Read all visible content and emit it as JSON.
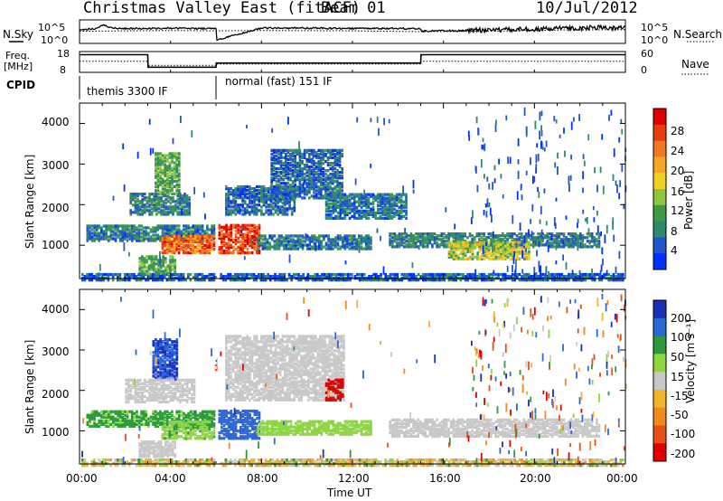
{
  "header": {
    "station": "Christmas Valley East (fitACF)",
    "beam": "Beam 01",
    "date": "10/Jul/2012"
  },
  "summary": {
    "nsky_label": "N.Sky",
    "nsearch_label": "N.Search",
    "noise_ticks": [
      "10^5",
      "10^0"
    ],
    "freq_label": "Freq.",
    "freq_unit": "[MHz]",
    "freq_ticks": [
      "18",
      "8"
    ],
    "nave_label": "Nave",
    "nave_ticks": [
      "60",
      "0"
    ],
    "cpid_label": "CPID",
    "modes": [
      {
        "start_hour": 0,
        "end_hour": 6,
        "label": "themis 3300 IF"
      },
      {
        "start_hour": 6,
        "end_hour": 24,
        "label": "normal (fast) 151 IF"
      }
    ]
  },
  "axes": {
    "x_ticks": [
      "00:00",
      "04:00",
      "08:00",
      "12:00",
      "16:00",
      "20:00",
      "00:00"
    ],
    "x_label": "Time UT",
    "y_label": "Slant Range [km]",
    "y_ticks": [
      "4000",
      "3000",
      "2000",
      "1000"
    ]
  },
  "colors": {
    "power": [
      "#0030ff",
      "#2255cc",
      "#2d8a6a",
      "#3f9a46",
      "#8cc63f",
      "#f0d020",
      "#f5a623",
      "#f07820",
      "#e83c10",
      "#e00000"
    ],
    "velocity": [
      "#1a2fb8",
      "#2c67d8",
      "#2d9a3a",
      "#8dd640",
      "#c8c8c8",
      "#f3b32a",
      "#f08a1c",
      "#e8501a",
      "#e00000"
    ]
  },
  "chart_data": [
    {
      "type": "line",
      "title": "",
      "x_unit": "hours UT",
      "xlim": [
        0,
        24
      ],
      "series": [
        {
          "name": "N.Sky",
          "x": [
            0,
            0.7,
            1,
            1.5,
            2,
            3,
            4,
            5,
            6,
            6.01,
            8,
            10,
            12,
            14,
            15,
            15.01,
            17,
            19,
            21,
            23,
            24
          ],
          "y_log10": [
            3.0,
            3.2,
            4.2,
            3.4,
            3.3,
            3.3,
            3.4,
            3.3,
            3.3,
            0.4,
            3.4,
            3.4,
            3.3,
            3.3,
            3.3,
            2.6,
            2.8,
            3.0,
            3.3,
            3.5,
            3.4
          ]
        },
        {
          "name": "N.Search",
          "x": [
            0,
            2,
            4,
            6,
            8,
            12,
            15,
            18,
            21,
            24
          ],
          "y_log10": [
            2.6,
            2.7,
            2.8,
            2.7,
            2.8,
            2.7,
            2.5,
            2.6,
            2.9,
            3.0
          ]
        }
      ],
      "ylim_log10": [
        0,
        5
      ]
    },
    {
      "type": "line",
      "title": "",
      "x_unit": "hours UT",
      "xlim": [
        0,
        24
      ],
      "series": [
        {
          "name": "Freq.",
          "x": [
            0,
            3,
            3.01,
            6,
            6.01,
            15,
            15.01,
            24
          ],
          "y": [
            16.5,
            16.5,
            10.5,
            10.5,
            12.5,
            12.5,
            16.5,
            16.5
          ]
        },
        {
          "name": "Nave",
          "x": [
            0,
            3,
            3.01,
            6,
            6.01,
            15,
            15.01,
            24
          ],
          "y_nave": [
            32,
            32,
            20,
            20,
            24,
            24,
            32,
            32
          ]
        }
      ],
      "ylim": [
        8,
        18
      ],
      "ylim_nave": [
        0,
        60
      ]
    },
    {
      "type": "heatmap",
      "title": "",
      "x_unit": "hours UT",
      "y_unit": "km",
      "colorbar_label": "Power [dB]",
      "colorbar_ticks": [
        "28",
        "24",
        "20",
        "16",
        "12",
        "8",
        "4"
      ],
      "clim": [
        0,
        30
      ],
      "xlim": [
        0,
        24
      ],
      "ylim": [
        180,
        4500
      ],
      "ground_scatter_band": {
        "range_km": [
          180,
          330
        ],
        "value": 6
      },
      "patches": [
        {
          "x": [
            0.3,
            6.0
          ],
          "y": [
            1150,
            1550
          ],
          "value": 8
        },
        {
          "x": [
            3.6,
            6.0
          ],
          "y": [
            850,
            1300
          ],
          "value": 24
        },
        {
          "x": [
            6.1,
            7.9
          ],
          "y": [
            850,
            1550
          ],
          "value": 26
        },
        {
          "x": [
            2.2,
            4.8
          ],
          "y": [
            1800,
            2300
          ],
          "value": 9
        },
        {
          "x": [
            3.3,
            4.4
          ],
          "y": [
            2300,
            3300
          ],
          "value": 12
        },
        {
          "x": [
            6.4,
            9.4
          ],
          "y": [
            1800,
            2500
          ],
          "value": 7
        },
        {
          "x": [
            8.4,
            11.6
          ],
          "y": [
            2200,
            3400
          ],
          "value": 7
        },
        {
          "x": [
            7.8,
            12.8
          ],
          "y": [
            950,
            1300
          ],
          "value": 8
        },
        {
          "x": [
            10.8,
            14.4
          ],
          "y": [
            1700,
            2300
          ],
          "value": 8
        },
        {
          "x": [
            13.6,
            22.8
          ],
          "y": [
            1000,
            1350
          ],
          "value": 9
        },
        {
          "x": [
            16.2,
            19.8
          ],
          "y": [
            700,
            1150
          ],
          "value": 16
        },
        {
          "x": [
            2.6,
            4.2
          ],
          "y": [
            350,
            800
          ],
          "value": 12
        }
      ]
    },
    {
      "type": "heatmap",
      "title": "",
      "x_unit": "hours UT",
      "y_unit": "km",
      "colorbar_label": "Velocity [m s⁻¹]",
      "colorbar_ticks": [
        "200",
        "100",
        "50",
        "15",
        "-15",
        "-50",
        "-100",
        "-200"
      ],
      "clim": [
        -250,
        250
      ],
      "xlim": [
        0,
        24
      ],
      "ylim": [
        180,
        4500
      ],
      "ground_scatter_band": {
        "range_km": [
          180,
          330
        ],
        "value": -30
      },
      "patches": [
        {
          "x": [
            0.3,
            6.0
          ],
          "y": [
            1150,
            1550
          ],
          "value": 60
        },
        {
          "x": [
            3.6,
            6.0
          ],
          "y": [
            850,
            1300
          ],
          "value": 40
        },
        {
          "x": [
            6.1,
            7.9
          ],
          "y": [
            850,
            1550
          ],
          "value": 180
        },
        {
          "x": [
            3.2,
            4.3
          ],
          "y": [
            2300,
            3300
          ],
          "value": 200
        },
        {
          "x": [
            2.0,
            5.0
          ],
          "y": [
            1750,
            2300
          ],
          "value": 0
        },
        {
          "x": [
            6.4,
            11.6
          ],
          "y": [
            1800,
            3400
          ],
          "value": 0
        },
        {
          "x": [
            10.8,
            11.6
          ],
          "y": [
            1800,
            2300
          ],
          "value": -220
        },
        {
          "x": [
            7.8,
            12.8
          ],
          "y": [
            950,
            1300
          ],
          "value": 30
        },
        {
          "x": [
            13.6,
            22.8
          ],
          "y": [
            900,
            1350
          ],
          "value": 0
        },
        {
          "x": [
            2.6,
            4.2
          ],
          "y": [
            400,
            800
          ],
          "value": 0
        }
      ]
    }
  ]
}
